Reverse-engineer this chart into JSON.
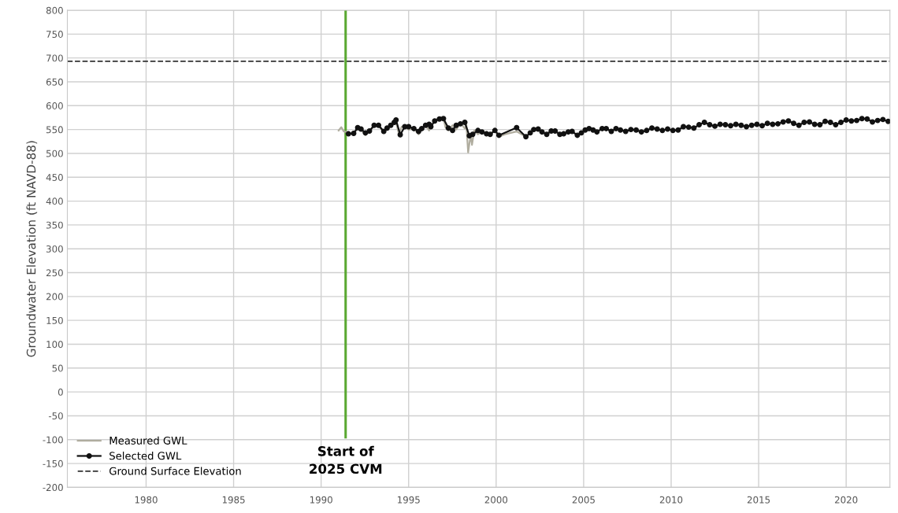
{
  "chart_data": {
    "type": "line",
    "ylabel": "Groundwater Elevation (ft NAVD-88)",
    "xlim": [
      1975.5,
      2022.5
    ],
    "xticks": [
      1980,
      1985,
      1990,
      1995,
      2000,
      2005,
      2010,
      2015,
      2020
    ],
    "ylim": [
      -200,
      800
    ],
    "yticks": [
      -200,
      -150,
      -100,
      -50,
      0,
      50,
      100,
      150,
      200,
      250,
      300,
      350,
      400,
      450,
      500,
      550,
      600,
      650,
      700,
      750,
      800
    ],
    "grid": true,
    "legend": "bottom left",
    "ref_lines": [
      {
        "axis": "y",
        "value": 693,
        "label": "Ground Surface Elevation",
        "color": "#333333",
        "line_style": "dashed"
      },
      {
        "axis": "x",
        "value": 1991.4,
        "label": "Start of\n2025 CVM",
        "color": "#5aa832",
        "line_style": "solid"
      }
    ],
    "series": [
      {
        "name": "Measured GWL",
        "color": "#b0ad9f",
        "marker": "none",
        "x": [
          1991.0,
          1991.15,
          1991.3,
          1991.45,
          1991.56,
          1991.86,
          1992.09,
          1992.28,
          1992.53,
          1992.76,
          1993.03,
          1993.28,
          1993.58,
          1993.77,
          1993.98,
          1994.18,
          1994.28,
          1994.45,
          1994.6,
          1994.78,
          1995.0,
          1995.3,
          1995.57,
          1995.75,
          1995.97,
          1996.17,
          1996.27,
          1996.49,
          1996.76,
          1996.99,
          1997.1,
          1997.27,
          1997.51,
          1997.72,
          1997.96,
          1998.21,
          1998.3,
          1998.4,
          1998.55,
          1998.62,
          1998.75,
          1998.96,
          1999.19,
          1999.45,
          1999.66,
          1999.93,
          2000.16,
          2000.5,
          2001.17,
          2001.7,
          2001.95,
          2002.15,
          2002.4,
          2002.62,
          2002.89,
          2003.15,
          2003.37,
          2003.64,
          2003.86,
          2004.12,
          2004.34,
          2004.64,
          2004.87,
          2005.09,
          2005.31,
          2005.54,
          2005.76,
          2006.06,
          2006.29,
          2006.58
        ],
        "values": [
          548,
          555,
          546,
          545,
          541,
          541,
          553,
          551,
          538,
          546,
          558,
          558,
          545,
          553,
          558,
          562,
          566,
          540,
          556,
          556,
          550,
          552,
          540,
          552,
          559,
          548,
          556,
          568,
          575,
          575,
          555,
          548,
          559,
          550,
          564,
          552,
          560,
          502,
          540,
          518,
          548,
          540,
          546,
          541,
          540,
          548,
          535,
          540,
          546,
          535,
          543,
          550,
          551,
          545,
          540,
          547,
          547,
          540,
          541,
          545,
          546,
          538,
          543,
          549,
          552,
          549,
          545,
          552,
          552,
          546
        ]
      },
      {
        "name": "Selected GWL",
        "color": "#111111",
        "marker": "circle",
        "x": [
          1991.56,
          1991.86,
          1992.09,
          1992.28,
          1992.53,
          1992.76,
          1993.03,
          1993.28,
          1993.58,
          1993.77,
          1993.98,
          1994.18,
          1994.28,
          1994.52,
          1994.78,
          1995.0,
          1995.3,
          1995.57,
          1995.75,
          1995.97,
          1996.17,
          1996.27,
          1996.49,
          1996.76,
          1996.99,
          1997.27,
          1997.51,
          1997.72,
          1997.96,
          1998.21,
          1998.47,
          1998.66,
          1998.96,
          1999.19,
          1999.45,
          1999.66,
          1999.93,
          2000.16,
          2001.17,
          2001.7,
          2001.95,
          2002.15,
          2002.4,
          2002.62,
          2002.89,
          2003.15,
          2003.37,
          2003.64,
          2003.86,
          2004.12,
          2004.34,
          2004.64,
          2004.87,
          2005.09,
          2005.31,
          2005.54,
          2005.76,
          2006.06,
          2006.29,
          2006.58,
          2006.85,
          2007.1,
          2007.4,
          2007.7,
          2008.0,
          2008.3,
          2008.6,
          2008.9,
          2009.2,
          2009.5,
          2009.8,
          2010.1,
          2010.4,
          2010.7,
          2011.0,
          2011.3,
          2011.6,
          2011.9,
          2012.2,
          2012.5,
          2012.8,
          2013.1,
          2013.4,
          2013.7,
          2014.0,
          2014.3,
          2014.6,
          2014.9,
          2015.2,
          2015.5,
          2015.8,
          2016.1,
          2016.4,
          2016.7,
          2017.0,
          2017.3,
          2017.6,
          2017.9,
          2018.2,
          2018.5,
          2018.8,
          2019.1,
          2019.4,
          2019.7,
          2020.0,
          2020.3,
          2020.6,
          2020.9,
          2021.2,
          2021.5,
          2021.8,
          2022.1,
          2022.4
        ],
        "values": [
          541,
          542,
          554,
          551,
          543,
          547,
          559,
          559,
          546,
          553,
          559,
          565,
          570,
          539,
          556,
          556,
          552,
          546,
          552,
          559,
          561,
          556,
          568,
          572,
          573,
          553,
          548,
          559,
          562,
          565,
          537,
          540,
          548,
          545,
          541,
          540,
          548,
          538,
          554,
          535,
          543,
          550,
          551,
          545,
          540,
          547,
          547,
          540,
          541,
          545,
          546,
          538,
          543,
          549,
          552,
          549,
          545,
          552,
          552,
          546,
          552,
          549,
          546,
          550,
          549,
          545,
          548,
          553,
          551,
          548,
          551,
          548,
          549,
          556,
          555,
          553,
          560,
          565,
          560,
          557,
          561,
          560,
          558,
          561,
          559,
          556,
          559,
          561,
          558,
          563,
          561,
          562,
          566,
          568,
          563,
          559,
          565,
          566,
          561,
          560,
          567,
          565,
          560,
          565,
          570,
          568,
          569,
          573,
          572,
          566,
          569,
          571,
          567
        ]
      }
    ]
  }
}
